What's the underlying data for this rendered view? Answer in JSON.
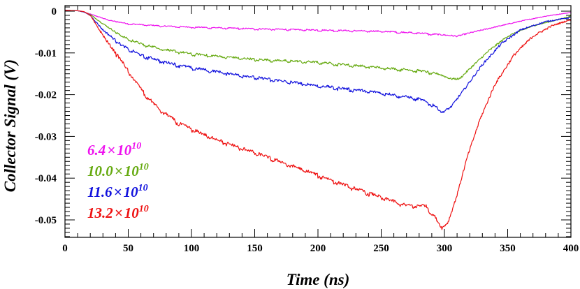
{
  "chart_data": {
    "type": "line",
    "title": "",
    "xlabel": "Time (ns)",
    "ylabel": "Collector Signal (V)",
    "xlim": [
      0,
      400
    ],
    "ylim": [
      -0.055,
      0.002
    ],
    "x_ticks": [
      0,
      50,
      100,
      150,
      200,
      250,
      300,
      350,
      400
    ],
    "x_tick_labels": [
      "0",
      "50",
      "100",
      "150",
      "200",
      "250",
      "300",
      "350",
      "400"
    ],
    "y_ticks": [
      0,
      -0.01,
      -0.02,
      -0.03,
      -0.04,
      -0.05
    ],
    "y_tick_labels": [
      "0",
      "-0.01",
      "-0.02",
      "-0.03",
      "-0.04",
      "-0.05"
    ],
    "grid": false,
    "legend_position": "bottom-left",
    "series": [
      {
        "name": "6.4",
        "legend": {
          "mantissa": "6.4",
          "times": "×",
          "base": "10",
          "exponent": "10"
        },
        "color": "#ee11ee",
        "points": [
          [
            0,
            0.0002
          ],
          [
            10,
            0.0001
          ],
          [
            15,
            -0.0002
          ],
          [
            25,
            -0.0012
          ],
          [
            35,
            -0.0022
          ],
          [
            50,
            -0.003
          ],
          [
            75,
            -0.0035
          ],
          [
            100,
            -0.0038
          ],
          [
            150,
            -0.0042
          ],
          [
            200,
            -0.0045
          ],
          [
            250,
            -0.0048
          ],
          [
            280,
            -0.0052
          ],
          [
            300,
            -0.0057
          ],
          [
            310,
            -0.006
          ],
          [
            320,
            -0.0052
          ],
          [
            340,
            -0.0038
          ],
          [
            360,
            -0.0024
          ],
          [
            380,
            -0.0012
          ],
          [
            400,
            -0.0003
          ]
        ]
      },
      {
        "name": "10.0",
        "legend": {
          "mantissa": "10.0",
          "times": "×",
          "base": "10",
          "exponent": "10"
        },
        "color": "#66aa11",
        "points": [
          [
            0,
            0.0002
          ],
          [
            10,
            0.0001
          ],
          [
            15,
            -0.0002
          ],
          [
            20,
            -0.0008
          ],
          [
            30,
            -0.003
          ],
          [
            45,
            -0.006
          ],
          [
            60,
            -0.0078
          ],
          [
            80,
            -0.0092
          ],
          [
            100,
            -0.0102
          ],
          [
            150,
            -0.0115
          ],
          [
            200,
            -0.0122
          ],
          [
            250,
            -0.0135
          ],
          [
            280,
            -0.0142
          ],
          [
            295,
            -0.015
          ],
          [
            305,
            -0.0162
          ],
          [
            312,
            -0.0162
          ],
          [
            320,
            -0.0138
          ],
          [
            335,
            -0.0095
          ],
          [
            350,
            -0.006
          ],
          [
            370,
            -0.0035
          ],
          [
            390,
            -0.002
          ],
          [
            400,
            -0.0012
          ]
        ]
      },
      {
        "name": "11.6",
        "legend": {
          "mantissa": "11.6",
          "times": "×",
          "base": "10",
          "exponent": "10"
        },
        "color": "#1111dd",
        "points": [
          [
            0,
            0.0002
          ],
          [
            10,
            0.0001
          ],
          [
            15,
            -0.0002
          ],
          [
            20,
            -0.001
          ],
          [
            30,
            -0.0045
          ],
          [
            45,
            -0.0082
          ],
          [
            60,
            -0.0105
          ],
          [
            80,
            -0.0122
          ],
          [
            100,
            -0.0135
          ],
          [
            150,
            -0.0158
          ],
          [
            200,
            -0.0178
          ],
          [
            250,
            -0.0195
          ],
          [
            280,
            -0.021
          ],
          [
            292,
            -0.0225
          ],
          [
            298,
            -0.0243
          ],
          [
            305,
            -0.023
          ],
          [
            315,
            -0.019
          ],
          [
            330,
            -0.0128
          ],
          [
            345,
            -0.0078
          ],
          [
            360,
            -0.0045
          ],
          [
            380,
            -0.0025
          ],
          [
            400,
            -0.0015
          ]
        ]
      },
      {
        "name": "13.2",
        "legend": {
          "mantissa": "13.2",
          "times": "×",
          "base": "10",
          "exponent": "10"
        },
        "color": "#ee1111",
        "points": [
          [
            0,
            0.0002
          ],
          [
            10,
            0.0001
          ],
          [
            15,
            -0.0001
          ],
          [
            20,
            -0.001
          ],
          [
            25,
            -0.0035
          ],
          [
            35,
            -0.008
          ],
          [
            45,
            -0.012
          ],
          [
            55,
            -0.0165
          ],
          [
            65,
            -0.0205
          ],
          [
            75,
            -0.0235
          ],
          [
            90,
            -0.0268
          ],
          [
            110,
            -0.0295
          ],
          [
            130,
            -0.0318
          ],
          [
            150,
            -0.0338
          ],
          [
            175,
            -0.0365
          ],
          [
            200,
            -0.0392
          ],
          [
            225,
            -0.042
          ],
          [
            250,
            -0.0445
          ],
          [
            270,
            -0.0465
          ],
          [
            285,
            -0.0465
          ],
          [
            292,
            -0.049
          ],
          [
            298,
            -0.052
          ],
          [
            303,
            -0.0505
          ],
          [
            310,
            -0.044
          ],
          [
            318,
            -0.035
          ],
          [
            328,
            -0.026
          ],
          [
            340,
            -0.0175
          ],
          [
            355,
            -0.0105
          ],
          [
            370,
            -0.006
          ],
          [
            385,
            -0.0035
          ],
          [
            400,
            -0.002
          ]
        ]
      }
    ]
  }
}
